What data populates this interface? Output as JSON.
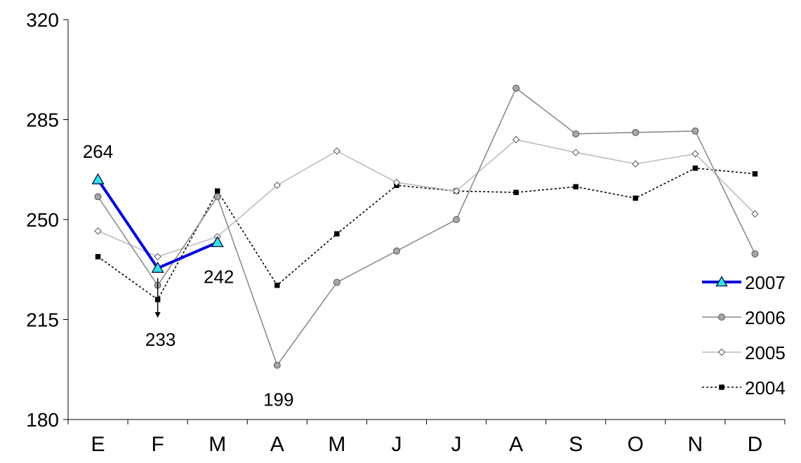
{
  "chart_data": {
    "type": "line",
    "title": "",
    "xlabel": "",
    "ylabel": "",
    "categories": [
      "E",
      "F",
      "M",
      "A",
      "M",
      "J",
      "J",
      "A",
      "S",
      "O",
      "N",
      "D"
    ],
    "ylim": [
      180,
      320
    ],
    "yticks": [
      180,
      215,
      250,
      285,
      320
    ],
    "grid": false,
    "legend_position": "bottom-right",
    "series": [
      {
        "name": "2007",
        "values": [
          264,
          233,
          242,
          null,
          null,
          null,
          null,
          null,
          null,
          null,
          null,
          null
        ],
        "color": "#0000dd",
        "marker": "triangle",
        "marker_fill": "#33e0e8",
        "line_style": "solid-thick"
      },
      {
        "name": "2006",
        "values": [
          258,
          227,
          258,
          199,
          228,
          239,
          250,
          296,
          280,
          280.5,
          281,
          238
        ],
        "color": "#8c8c8c",
        "marker": "circle",
        "marker_fill": "#a6a6a6",
        "line_style": "solid"
      },
      {
        "name": "2005",
        "values": [
          246,
          237,
          244,
          262,
          274,
          263,
          260,
          278,
          273.5,
          269.5,
          273,
          252
        ],
        "color": "#bdbdbd",
        "marker": "diamond",
        "marker_fill": "#ffffff",
        "line_style": "solid"
      },
      {
        "name": "2004",
        "values": [
          237,
          222,
          260,
          227,
          245,
          262,
          260,
          259.5,
          261.5,
          257.5,
          268,
          266
        ],
        "color": "#000000",
        "marker": "square",
        "marker_fill": "#000000",
        "line_style": "dotted"
      }
    ],
    "annotations": [
      {
        "text": "264",
        "series": "2007",
        "index": 0,
        "placement": "above"
      },
      {
        "text": "233",
        "series": "2007",
        "index": 1,
        "placement": "below-arrow"
      },
      {
        "text": "242",
        "series": "2007",
        "index": 2,
        "placement": "below"
      },
      {
        "text": "199",
        "series": "2006",
        "index": 3,
        "placement": "below"
      }
    ]
  }
}
